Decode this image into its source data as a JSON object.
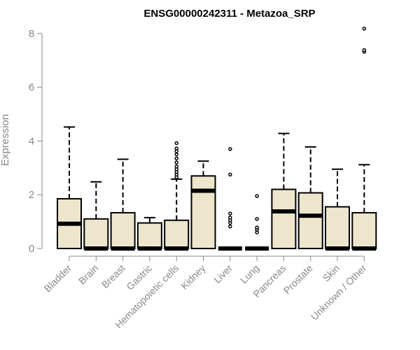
{
  "chart_data": {
    "type": "boxplot",
    "title": "ENSG00000242311 - Metazoa_SRP",
    "xlabel": "",
    "ylabel": "Expression",
    "ylim": [
      0,
      8.5
    ],
    "yticks": [
      0,
      2,
      4,
      6,
      8
    ],
    "grid": false,
    "box_color": "#ede6cc",
    "categories": [
      "Bladder",
      "Brain",
      "Breast",
      "Gastric",
      "Hematopoietic cells",
      "Kidney",
      "Liver",
      "Lung",
      "Pancreas",
      "Prostate",
      "Skin",
      "Unknown / Other"
    ],
    "boxes": [
      {
        "min": 0,
        "q1": 0,
        "median": 0.92,
        "q3": 1.85,
        "max": 4.52,
        "outliers": []
      },
      {
        "min": 0,
        "q1": 0,
        "median": 0,
        "q3": 1.1,
        "max": 2.48,
        "outliers": []
      },
      {
        "min": 0,
        "q1": 0,
        "median": 0,
        "q3": 1.33,
        "max": 3.32,
        "outliers": []
      },
      {
        "min": 0,
        "q1": 0,
        "median": 0,
        "q3": 0.95,
        "max": 1.15,
        "outliers": []
      },
      {
        "min": 0,
        "q1": 0,
        "median": 0,
        "q3": 1.05,
        "max": 2.58,
        "outliers": [
          2.65,
          2.75,
          2.85,
          2.95,
          3.05,
          3.2,
          3.35,
          3.5,
          3.62,
          3.72,
          3.92
        ]
      },
      {
        "min": 0,
        "q1": 0,
        "median": 2.15,
        "q3": 2.7,
        "max": 3.25,
        "outliers": []
      },
      {
        "min": 0,
        "q1": 0,
        "median": 0,
        "q3": 0,
        "max": 0,
        "outliers": [
          0.82,
          0.95,
          1.05,
          1.15,
          1.3,
          2.75,
          3.7
        ]
      },
      {
        "min": 0,
        "q1": 0,
        "median": 0,
        "q3": 0,
        "max": 0,
        "outliers": [
          0.6,
          0.7,
          0.78,
          1.1,
          1.95
        ]
      },
      {
        "min": 0,
        "q1": 0,
        "median": 1.38,
        "q3": 2.2,
        "max": 4.28,
        "outliers": []
      },
      {
        "min": 0,
        "q1": 0,
        "median": 1.22,
        "q3": 2.07,
        "max": 3.78,
        "outliers": []
      },
      {
        "min": 0,
        "q1": 0,
        "median": 0,
        "q3": 1.55,
        "max": 2.95,
        "outliers": []
      },
      {
        "min": 0,
        "q1": 0,
        "median": 0,
        "q3": 1.33,
        "max": 3.12,
        "outliers": [
          7.32,
          7.38,
          8.18
        ]
      }
    ]
  }
}
